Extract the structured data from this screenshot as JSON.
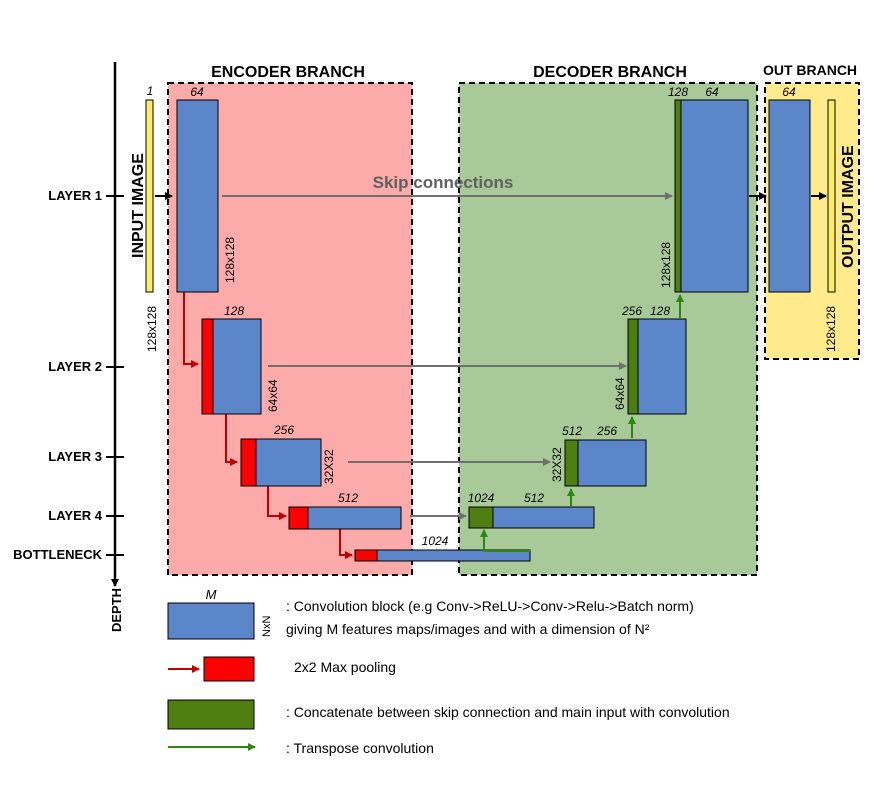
{
  "branches": {
    "encoder": "ENCODER BRANCH",
    "decoder": "DECODER BRANCH",
    "out": "OUT BRANCH"
  },
  "depth_axis": {
    "label": "DEPTH",
    "layers": [
      "LAYER 1",
      "LAYER 2",
      "LAYER 3",
      "LAYER 4",
      "BOTTLENECK"
    ]
  },
  "input": {
    "label": "INPUT IMAGE",
    "channels": "1",
    "size": "128x128"
  },
  "output": {
    "label": "OUTPUT IMAGE",
    "size": "128x128"
  },
  "skip_label": "Skip connections",
  "encoder": {
    "l1_m": "64",
    "l1_n": "128x128",
    "l2_m": "128",
    "l2_n": "64x64",
    "l3_m": "256",
    "l3_n": "32X32",
    "l4_m": "512",
    "bottleneck_m": "1024"
  },
  "decoder": {
    "l4_concat": "1024",
    "l4_m": "512",
    "l3_concat": "512",
    "l3_m": "256",
    "l3_n": "32X32",
    "l2_concat": "256",
    "l2_m": "128",
    "l2_n": "64x64",
    "l1_concat": "128",
    "l1_m": "64",
    "l1_n": "128x128"
  },
  "out_branch": {
    "m": "64"
  },
  "legend": {
    "conv_m": "M",
    "conv_n": "NxN",
    "conv_text1": ": Convolution block (e.g Conv->ReLU->Conv->Relu->Batch norm)",
    "conv_text2": "giving M features maps/images and with a dimension of N²",
    "pool_text": "2x2 Max pooling",
    "concat_text": ": Concatenate between skip connection and main input  with convolution",
    "transpose_text": ": Transpose convolution"
  },
  "colors": {
    "conv_blue": "#5b86c9",
    "pool_red": "#ff0000",
    "concat_green": "#4e7d10",
    "encoder_bg": "#fdaaaa",
    "decoder_bg": "#a8ca98",
    "out_bg": "#ffeb8c",
    "input_yellow": "#ffeb6a",
    "skip_gray": "#707070",
    "pool_arrow": "#c00000",
    "transpose_arrow": "#2a8a10"
  }
}
